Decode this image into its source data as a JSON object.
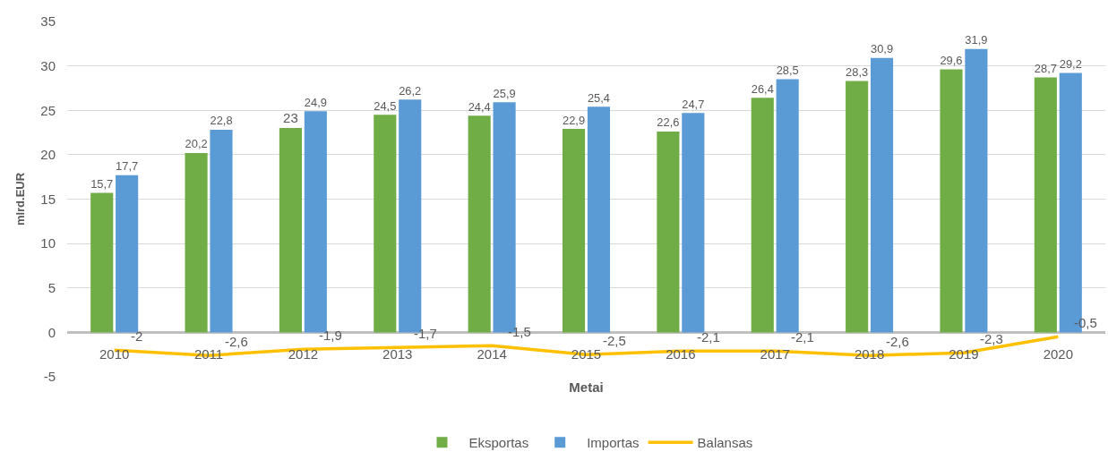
{
  "chart_data": {
    "type": "bar",
    "xlabel": "Metai",
    "ylabel": "mlrd.EUR",
    "categories": [
      "2010",
      "2011",
      "2012",
      "2013",
      "2014",
      "2015",
      "2016",
      "2017",
      "2018",
      "2019",
      "2020"
    ],
    "series": [
      {
        "name": "Eksportas",
        "color": "#70ad47",
        "values": [
          15.7,
          20.2,
          23,
          24.5,
          24.4,
          22.9,
          22.6,
          26.4,
          28.3,
          29.6,
          28.7
        ],
        "value_labels": [
          "15,7",
          "20,2",
          "23",
          "24,5",
          "24,4",
          "22,9",
          "22,6",
          "26,4",
          "28,3",
          "29,6",
          "28,7"
        ]
      },
      {
        "name": "Importas",
        "color": "#5b9bd5",
        "values": [
          17.7,
          22.8,
          24.9,
          26.2,
          25.9,
          25.4,
          24.7,
          28.5,
          30.9,
          31.9,
          29.2
        ],
        "value_labels": [
          "17,7",
          "22,8",
          "24,9",
          "26,2",
          "25,9",
          "25,4",
          "24,7",
          "28,5",
          "30,9",
          "31,9",
          "29,2"
        ]
      },
      {
        "name": "Balansas",
        "type": "line",
        "color": "#ffc000",
        "values": [
          -2,
          -2.6,
          -1.9,
          -1.7,
          -1.5,
          -2.5,
          -2.1,
          -2.1,
          -2.6,
          -2.3,
          -0.5
        ],
        "value_labels": [
          "-2",
          "-2,6",
          "-1,9",
          "-1,7",
          "-1,5",
          "-2,5",
          "-2,1",
          "-2,1",
          "-2,6",
          "-2,3",
          "-0,5"
        ]
      }
    ],
    "ylim": [
      -5,
      35
    ],
    "yticks": [
      -5,
      0,
      5,
      10,
      15,
      20,
      25,
      30,
      35
    ],
    "grid": "y",
    "legend": "bottom"
  }
}
